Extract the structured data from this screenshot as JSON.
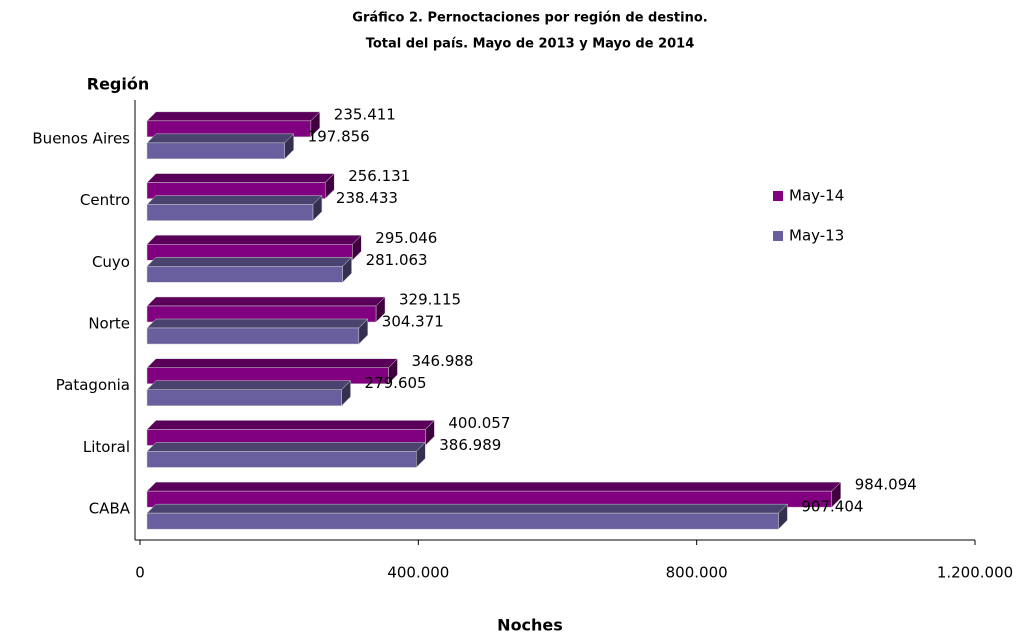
{
  "chart_data": {
    "type": "bar",
    "orientation": "horizontal",
    "title": "Gráfico 2. Pernoctaciones por región de destino.",
    "subtitle": "Total del país. Mayo de 2013 y Mayo de 2014",
    "y_label": "Región",
    "x_label": "Noches",
    "categories": [
      "Buenos Aires",
      "Centro",
      "Cuyo",
      "Norte",
      "Patagonia",
      "Litoral",
      "CABA"
    ],
    "series": [
      {
        "name": "May-14",
        "color": "#800080",
        "values": [
          235411,
          256131,
          295046,
          329115,
          346988,
          400057,
          984094
        ],
        "value_labels": [
          "235.411",
          "256.131",
          "295.046",
          "329.115",
          "346.988",
          "400.057",
          "984.094"
        ]
      },
      {
        "name": "May-13",
        "color": "#6a5f9e",
        "values": [
          197856,
          238433,
          281063,
          304371,
          279605,
          386989,
          907404
        ],
        "value_labels": [
          "197.856",
          "238.433",
          "281.063",
          "304.371",
          "279.605",
          "386.989",
          "907.404"
        ]
      }
    ],
    "xlim": [
      0,
      1200000
    ],
    "xticks": [
      0,
      {
        "value": 400000,
        "label": "400.000"
      },
      {
        "value": 800000,
        "label": "800.000"
      },
      {
        "value": 1200000,
        "label": "1.200.000"
      }
    ],
    "legend": "right",
    "grid": false
  }
}
